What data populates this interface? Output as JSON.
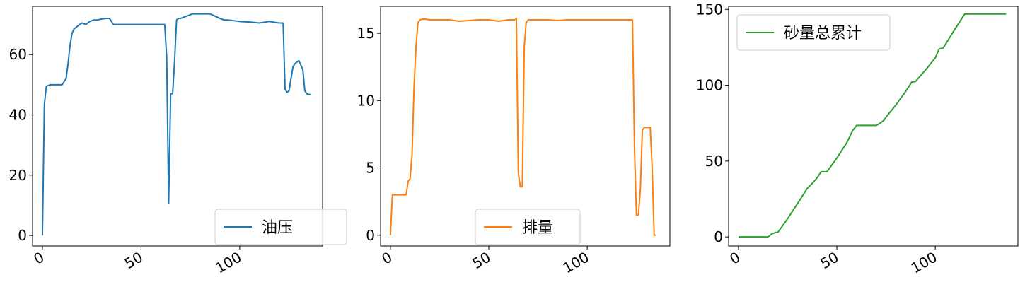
{
  "chart_data": [
    {
      "type": "line",
      "xlim": [
        -5,
        142
      ],
      "ylim": [
        -3.5,
        76
      ],
      "xticks": [
        0,
        50,
        100
      ],
      "yticks": [
        0,
        20,
        40,
        60
      ],
      "legend_position": "lower-right",
      "series": [
        {
          "name": "油压",
          "color": "#1f77b4",
          "x": [
            0,
            1,
            2,
            4,
            6,
            8,
            10,
            11,
            12,
            13,
            14,
            15,
            16,
            18,
            20,
            22,
            24,
            26,
            28,
            30,
            32,
            34,
            36,
            38,
            40,
            42,
            44,
            50,
            55,
            58,
            60,
            62,
            63,
            64,
            65,
            66,
            67,
            68,
            69,
            70,
            72,
            74,
            76,
            80,
            85,
            90,
            92,
            94,
            100,
            105,
            110,
            115,
            120,
            122,
            123,
            124,
            125,
            127,
            128,
            129,
            130,
            132,
            133,
            134,
            135,
            136
          ],
          "y": [
            0,
            43.5,
            49.5,
            50,
            50,
            50,
            50,
            51,
            52,
            57,
            63,
            67,
            68.5,
            69.5,
            70.5,
            70,
            71,
            71.5,
            71.5,
            71.8,
            72,
            72,
            70,
            70,
            70,
            70,
            70,
            70,
            70,
            70,
            70,
            70,
            59,
            10.7,
            47,
            47,
            58,
            71.5,
            72,
            72,
            72.5,
            73,
            73.5,
            73.5,
            73.5,
            72,
            71.5,
            71.5,
            71,
            70.8,
            70.5,
            71,
            70.5,
            70.5,
            48.5,
            47.5,
            48,
            56,
            57,
            57.5,
            58,
            55,
            48,
            47,
            46.8,
            46.7
          ]
        }
      ]
    },
    {
      "type": "line",
      "xlim": [
        -5,
        142
      ],
      "ylim": [
        -0.8,
        17
      ],
      "xticks": [
        0,
        50,
        100
      ],
      "yticks": [
        0,
        5,
        10,
        15
      ],
      "legend_position": "lower-center",
      "series": [
        {
          "name": "排量",
          "color": "#ff7f0e",
          "x": [
            0,
            1,
            2,
            4,
            6,
            8,
            9,
            10,
            11,
            12,
            13,
            14,
            15,
            16,
            18,
            20,
            25,
            30,
            35,
            40,
            45,
            50,
            55,
            60,
            63,
            64,
            65,
            66,
            67,
            68,
            69,
            70,
            75,
            80,
            85,
            90,
            95,
            100,
            110,
            120,
            122,
            123,
            124,
            125,
            126,
            127,
            128,
            129,
            130,
            131,
            132,
            133,
            134,
            135
          ],
          "y": [
            0,
            3,
            3,
            3,
            3,
            3,
            4,
            4.2,
            6,
            11,
            14,
            15.8,
            16,
            16.05,
            16.05,
            16,
            16,
            16,
            15.9,
            15.95,
            16,
            16,
            15.9,
            16,
            16,
            16.1,
            4.6,
            3.6,
            3.6,
            14,
            15.8,
            16,
            16,
            16,
            15.95,
            16,
            16,
            16,
            16,
            16,
            16,
            16,
            6.5,
            1.5,
            1.5,
            3.4,
            7.8,
            8,
            8,
            8,
            8,
            5,
            0,
            0
          ]
        }
      ]
    },
    {
      "type": "line",
      "xlim": [
        -5,
        142
      ],
      "ylim": [
        -6,
        152
      ],
      "xticks": [
        0,
        50,
        100
      ],
      "yticks": [
        0,
        50,
        100,
        150
      ],
      "legend_position": "upper-left",
      "series": [
        {
          "name": "砂量总累计",
          "color": "#2ca02c",
          "x": [
            0,
            15,
            17,
            19,
            20,
            25,
            30,
            35,
            38,
            40,
            42,
            45,
            50,
            55,
            58,
            60,
            65,
            70,
            72,
            74,
            75,
            80,
            85,
            88,
            90,
            95,
            100,
            102,
            104,
            110,
            115,
            116,
            125,
            136
          ],
          "y": [
            0,
            0,
            2,
            3,
            3,
            12,
            22,
            32,
            36,
            39,
            43,
            43,
            52,
            62,
            70,
            73.5,
            73.5,
            73.5,
            75,
            77,
            79,
            87,
            96,
            102,
            102.5,
            110,
            118,
            124,
            124.5,
            137,
            147,
            147,
            147,
            147
          ]
        }
      ]
    }
  ]
}
